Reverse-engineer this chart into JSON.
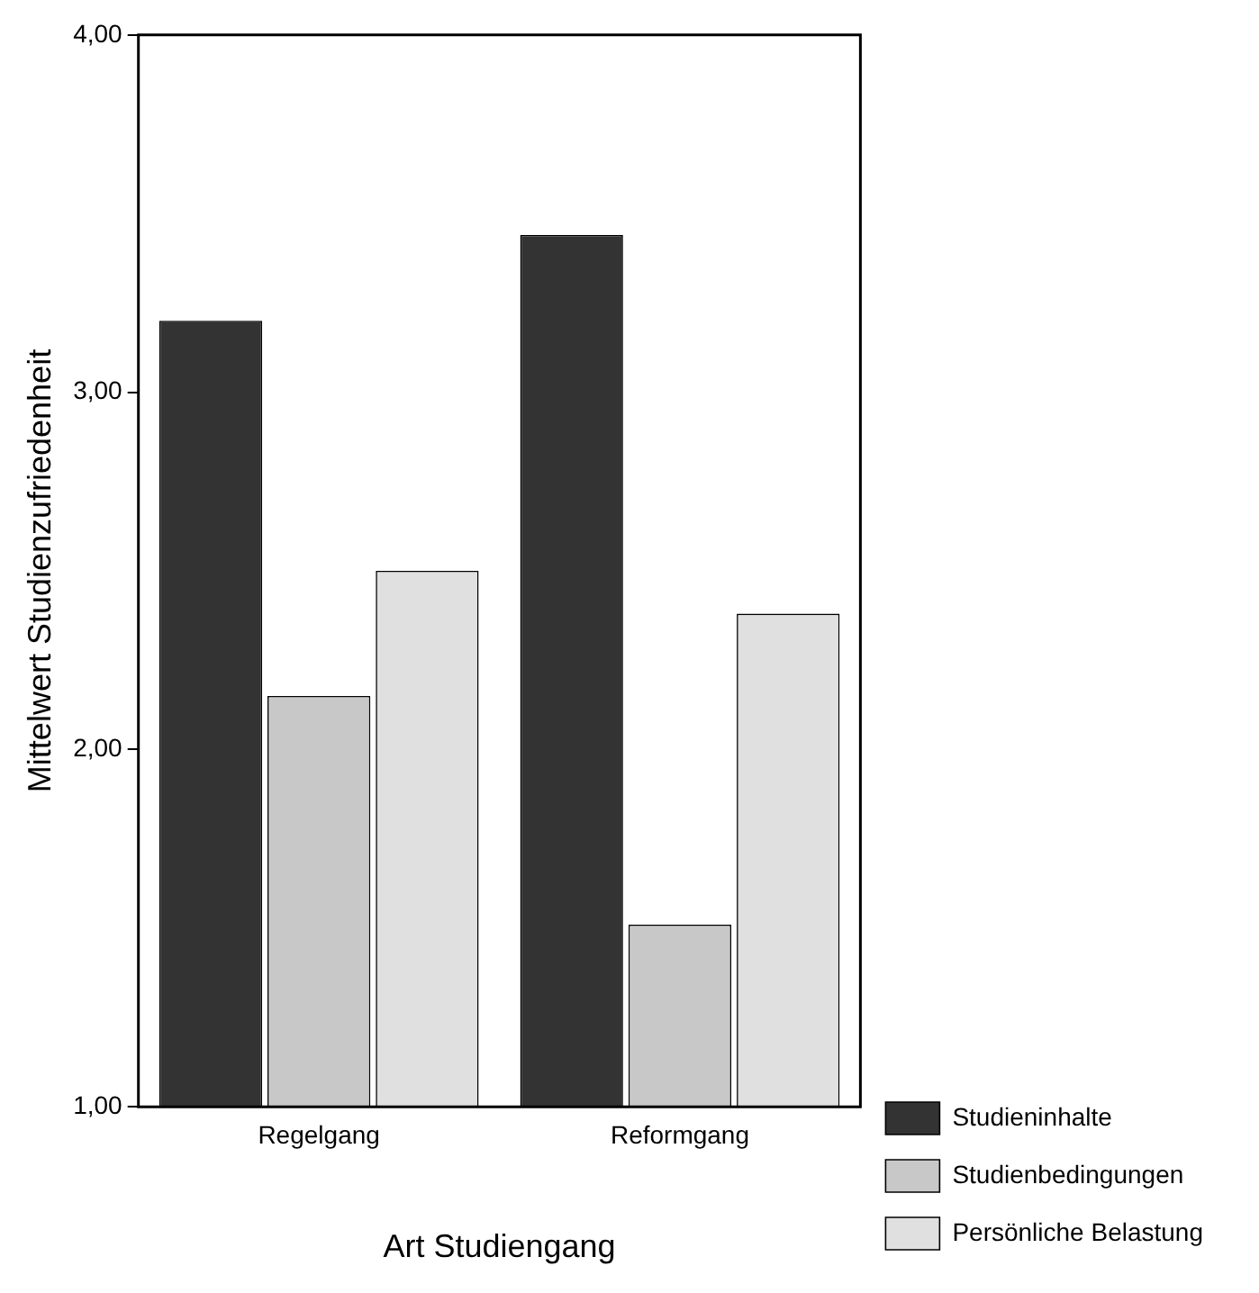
{
  "chart_data": {
    "type": "bar",
    "xlabel": "Art Studiengang",
    "ylabel": "Mittelwert Studienzufriedenheit",
    "categories": [
      "Regelgang",
      "Reformgang"
    ],
    "series": [
      {
        "name": "Studieninhalte",
        "color": "#333333",
        "values": [
          3.2,
          3.44
        ]
      },
      {
        "name": "Studienbedingungen",
        "color": "#c8c8c8",
        "values": [
          2.15,
          1.51
        ]
      },
      {
        "name": "Persönliche Belastung",
        "color": "#e0e0e0",
        "values": [
          2.5,
          2.38
        ]
      }
    ],
    "ylim": [
      1,
      4
    ],
    "yticks": [
      {
        "value": 1,
        "label": "1,00"
      },
      {
        "value": 2,
        "label": "2,00"
      },
      {
        "value": 3,
        "label": "3,00"
      },
      {
        "value": 4,
        "label": "4,00"
      }
    ],
    "grid": false,
    "legend": "right"
  }
}
